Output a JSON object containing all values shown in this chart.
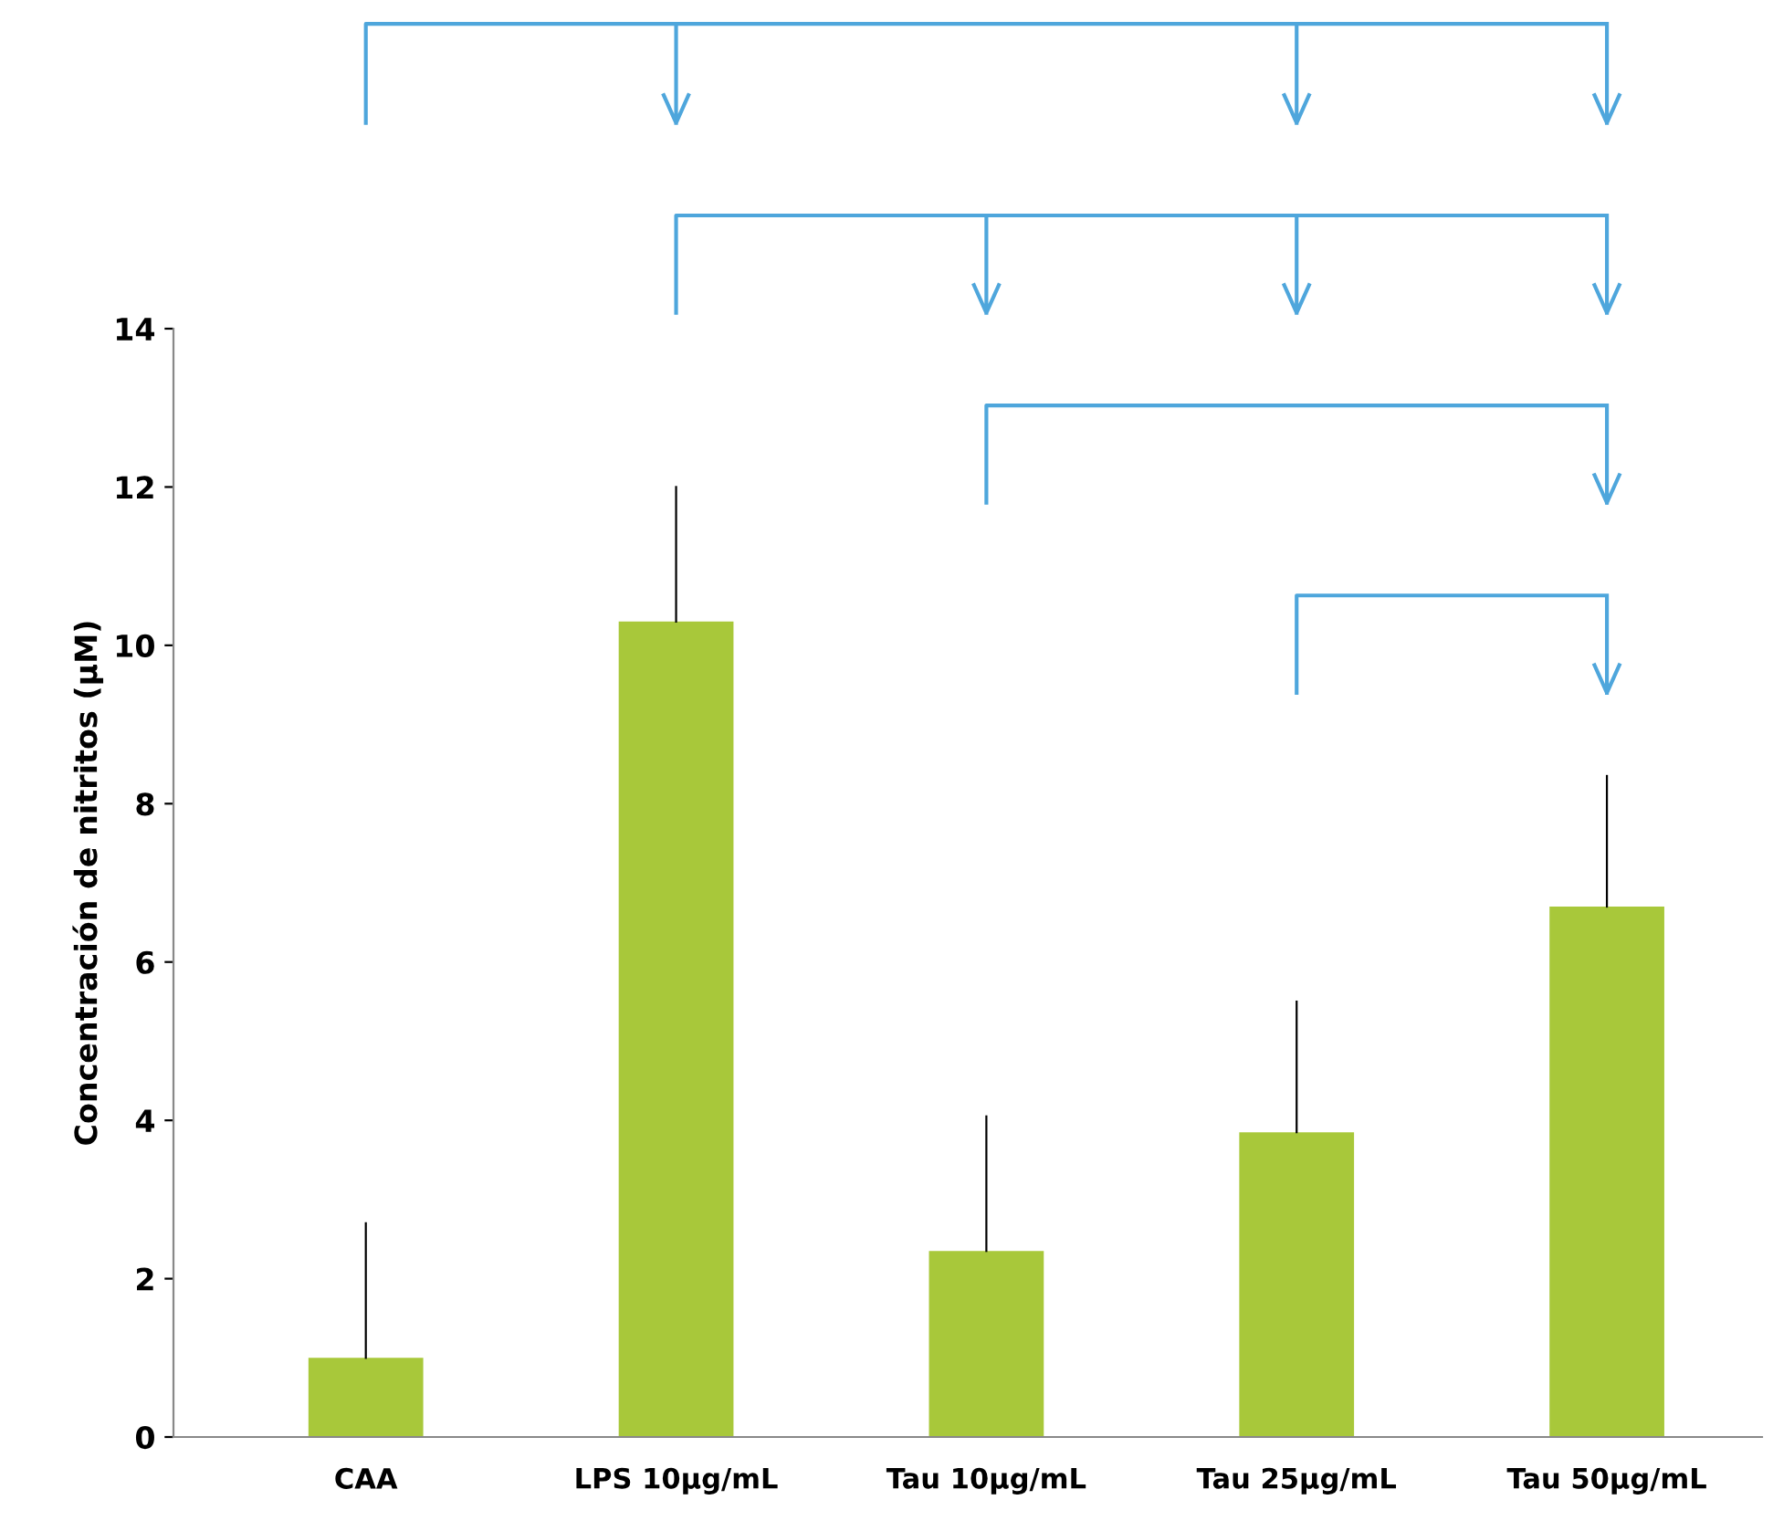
{
  "chart_data": {
    "type": "bar",
    "ylabel": "Concentración de nitritos (µM)",
    "categories": [
      "CAA",
      "LPS 10µg/mL",
      "Tau 10µg/mL",
      "Tau 25µg/mL",
      "Tau 50µg/mL"
    ],
    "values": [
      1.0,
      10.3,
      2.35,
      3.85,
      6.7
    ],
    "errors": [
      [
        1.0,
        2.7
      ],
      [
        10.3,
        12.0
      ],
      [
        2.35,
        4.05
      ],
      [
        3.85,
        5.5
      ],
      [
        6.7,
        8.35
      ]
    ],
    "color": "#a8c83a",
    "ylim": [
      0,
      14
    ],
    "yticks": [
      0,
      2,
      4,
      6,
      8,
      10,
      12,
      14
    ],
    "grid": false,
    "legend": false
  }
}
